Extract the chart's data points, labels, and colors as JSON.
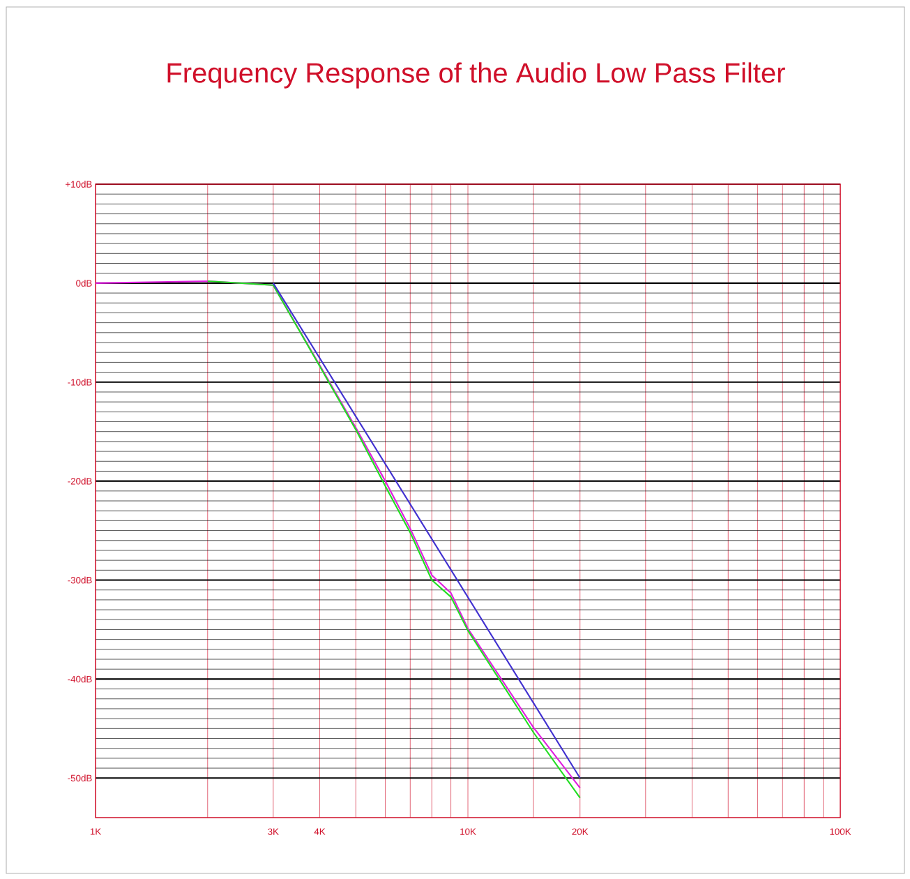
{
  "chart_data": {
    "type": "line",
    "title": "Frequency Response of the Audio Low Pass Filter",
    "log": "x",
    "xlim": [
      1000,
      100000
    ],
    "xticks": [
      {
        "value": 1000,
        "label": "1K"
      },
      {
        "value": 2000,
        "label": null
      },
      {
        "value": 3000,
        "label": "3K"
      },
      {
        "value": 4000,
        "label": "4K"
      },
      {
        "value": 5000,
        "label": null
      },
      {
        "value": 6000,
        "label": null
      },
      {
        "value": 7000,
        "label": null
      },
      {
        "value": 8000,
        "label": null
      },
      {
        "value": 9000,
        "label": null
      },
      {
        "value": 10000,
        "label": "10K"
      },
      {
        "value": 15000,
        "label": null
      },
      {
        "value": 20000,
        "label": "20K"
      },
      {
        "value": 30000,
        "label": null
      },
      {
        "value": 40000,
        "label": null
      },
      {
        "value": 50000,
        "label": null
      },
      {
        "value": 60000,
        "label": null
      },
      {
        "value": 70000,
        "label": null
      },
      {
        "value": 80000,
        "label": null
      },
      {
        "value": 90000,
        "label": null
      },
      {
        "value": 100000,
        "label": "100K"
      }
    ],
    "ylim": [
      -54,
      10
    ],
    "yticks": [
      {
        "value": 10,
        "label": "+10dB"
      },
      {
        "value": 0,
        "label": "0dB"
      },
      {
        "value": -10,
        "label": "-10dB"
      },
      {
        "value": -20,
        "label": "-20dB"
      },
      {
        "value": -30,
        "label": "-30dB"
      },
      {
        "value": -40,
        "label": "-40dB"
      },
      {
        "value": -50,
        "label": "-50dB"
      }
    ],
    "grid": true,
    "series": [
      {
        "color": "#e020e0",
        "x": [
          1000,
          2000,
          3000,
          4000,
          5000,
          6000,
          7000,
          8000,
          9000,
          10000,
          15000,
          20000
        ],
        "values": [
          0,
          0.2,
          -0.2,
          -8.3,
          -14.6,
          -20,
          -24.8,
          -29.5,
          -31.3,
          -34.9,
          -44.9,
          -51
        ]
      },
      {
        "color": "#22dd22",
        "x": [
          2000,
          3000,
          4000,
          5000,
          6000,
          7000,
          8000,
          9000,
          10000,
          15000,
          20000
        ],
        "values": [
          0.2,
          -0.2,
          -8.4,
          -14.8,
          -20.5,
          -25.2,
          -30,
          -31.7,
          -35.1,
          -45.4,
          -52
        ]
      },
      {
        "color": "#4030d0",
        "x": [
          3000,
          20000
        ],
        "values": [
          0,
          -50
        ]
      }
    ]
  }
}
